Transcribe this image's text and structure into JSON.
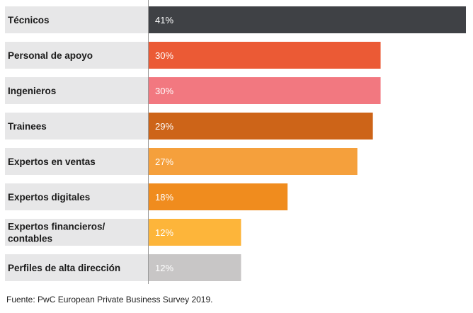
{
  "chart_data": {
    "type": "bar",
    "orientation": "horizontal",
    "categories": [
      "Técnicos",
      "Personal de apoyo",
      "Ingenieros",
      "Trainees",
      "Expertos en ventas",
      "Expertos digitales",
      "Expertos financieros/\ncontables",
      "Perfiles de alta dirección"
    ],
    "values": [
      41,
      30,
      30,
      29,
      27,
      18,
      12,
      12
    ],
    "value_labels": [
      "41%",
      "30%",
      "30%",
      "29%",
      "27%",
      "18%",
      "12%",
      "12%"
    ],
    "bar_colors": [
      "#3f4145",
      "#eb5a35",
      "#f27880",
      "#cd6418",
      "#f5a03c",
      "#f08c1e",
      "#fdb53a",
      "#c8c6c6"
    ],
    "label_background": "#e7e7e8",
    "axis_line_color": "#9a9a9a",
    "xlim": [
      0,
      41
    ],
    "grid": false,
    "legend": "none"
  },
  "source": "Fuente: PwC European Private Business Survey 2019."
}
